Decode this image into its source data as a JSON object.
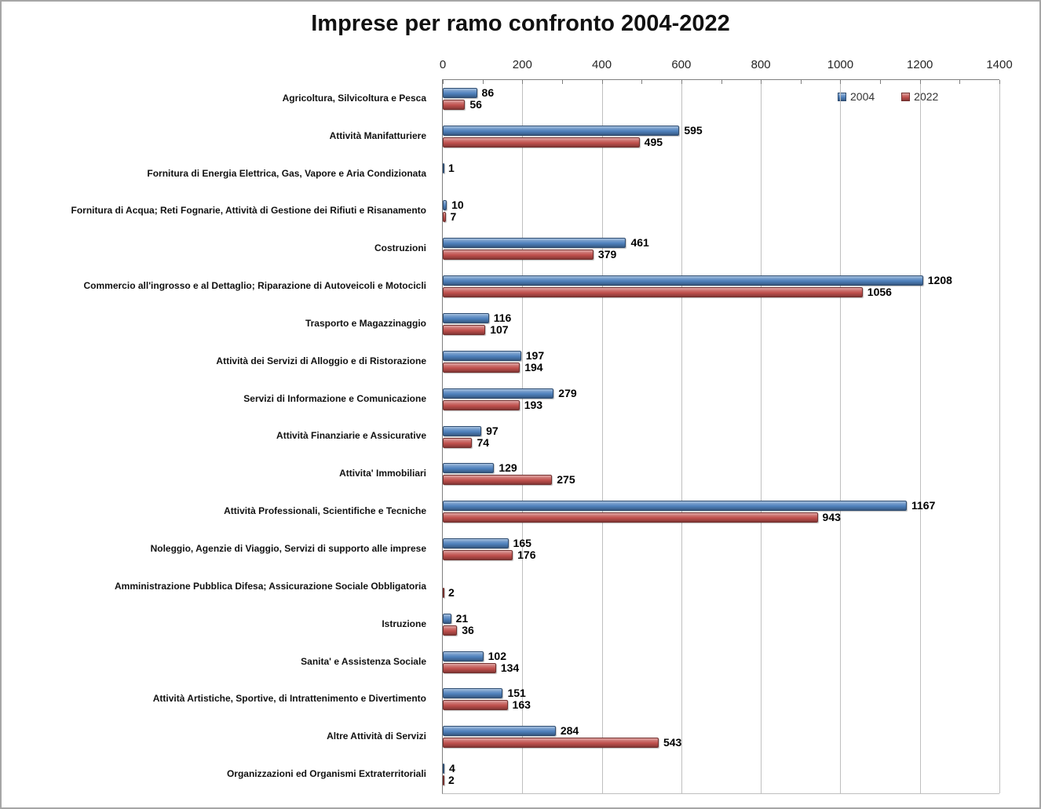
{
  "title": "Imprese per ramo confronto 2004-2022",
  "axis": {
    "ticks": [
      0,
      200,
      400,
      600,
      800,
      1000,
      1200,
      1400
    ],
    "minor_tick_step": 100,
    "gridline_step": 200,
    "max": 1400
  },
  "legend": {
    "position": "top-right",
    "items": [
      {
        "label": "2004",
        "color": "#4F81BD"
      },
      {
        "label": "2022",
        "color": "#C0504D"
      }
    ]
  },
  "colors": {
    "bar_2004": "#4F81BD",
    "bar_2022": "#C0504D",
    "gridline": "#bfbfbf",
    "axis_line": "#7f7f7f",
    "frame_border": "#a6a6a6",
    "background": "#ffffff"
  },
  "chart_data": {
    "type": "bar",
    "orientation": "horizontal",
    "title": "Imprese per ramo confronto 2004-2022",
    "xlabel": "",
    "ylabel": "",
    "xlim": [
      0,
      1400
    ],
    "grid": true,
    "legend_position": "top-right",
    "categories": [
      "Agricoltura, Silvicoltura e Pesca",
      "Attività Manifatturiere",
      "Fornitura di Energia Elettrica, Gas, Vapore e Aria Condizionata",
      "Fornitura di Acqua; Reti Fognarie, Attività di Gestione dei Rifiuti e Risanamento",
      "Costruzioni",
      "Commercio all'ingrosso e al Dettaglio; Riparazione di Autoveicoli e Motocicli",
      "Trasporto e Magazzinaggio",
      "Attività dei Servizi di Alloggio e di Ristorazione",
      "Servizi di Informazione e Comunicazione",
      "Attività Finanziarie e Assicurative",
      "Attivita' Immobiliari",
      "Attività Professionali, Scientifiche e Tecniche",
      "Noleggio, Agenzie di Viaggio, Servizi di supporto alle imprese",
      "Amministrazione Pubblica Difesa; Assicurazione Sociale Obbligatoria",
      "Istruzione",
      "Sanita' e Assistenza Sociale",
      "Attività Artistiche, Sportive, di Intrattenimento e Divertimento",
      "Altre Attività di Servizi",
      "Organizzazioni ed Organismi Extraterritoriali"
    ],
    "series": [
      {
        "name": "2004",
        "color": "#4F81BD",
        "values": [
          86,
          595,
          1,
          10,
          461,
          1208,
          116,
          197,
          279,
          97,
          129,
          1167,
          165,
          null,
          21,
          102,
          151,
          284,
          4
        ]
      },
      {
        "name": "2022",
        "color": "#C0504D",
        "values": [
          56,
          495,
          null,
          7,
          379,
          1056,
          107,
          194,
          193,
          74,
          275,
          943,
          176,
          2,
          36,
          134,
          163,
          543,
          2
        ]
      }
    ]
  }
}
